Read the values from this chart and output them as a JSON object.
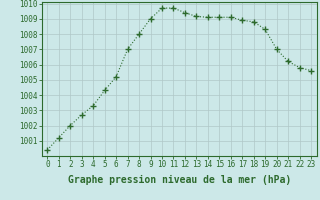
{
  "x": [
    0,
    1,
    2,
    3,
    4,
    5,
    6,
    7,
    8,
    9,
    10,
    11,
    12,
    13,
    14,
    15,
    16,
    17,
    18,
    19,
    20,
    21,
    22,
    23
  ],
  "y": [
    1000.4,
    1001.2,
    1002.0,
    1002.7,
    1003.3,
    1004.3,
    1005.2,
    1007.0,
    1008.0,
    1009.0,
    1009.7,
    1009.7,
    1009.4,
    1009.15,
    1009.1,
    1009.1,
    1009.1,
    1008.9,
    1008.8,
    1008.3,
    1007.0,
    1006.2,
    1005.8,
    1005.6
  ],
  "line_color": "#2d6a2d",
  "marker": "+",
  "marker_size": 4,
  "background_color": "#cce8e8",
  "grid_color": "#b0c8c8",
  "xlabel": "Graphe pression niveau de la mer (hPa)",
  "ylim": [
    1000,
    1010
  ],
  "xlim": [
    -0.5,
    23.5
  ],
  "yticks": [
    1001,
    1002,
    1003,
    1004,
    1005,
    1006,
    1007,
    1008,
    1009,
    1010
  ],
  "xticks": [
    0,
    1,
    2,
    3,
    4,
    5,
    6,
    7,
    8,
    9,
    10,
    11,
    12,
    13,
    14,
    15,
    16,
    17,
    18,
    19,
    20,
    21,
    22,
    23
  ],
  "tick_label_fontsize": 5.5,
  "xlabel_fontsize": 7.0,
  "linewidth": 0.8
}
